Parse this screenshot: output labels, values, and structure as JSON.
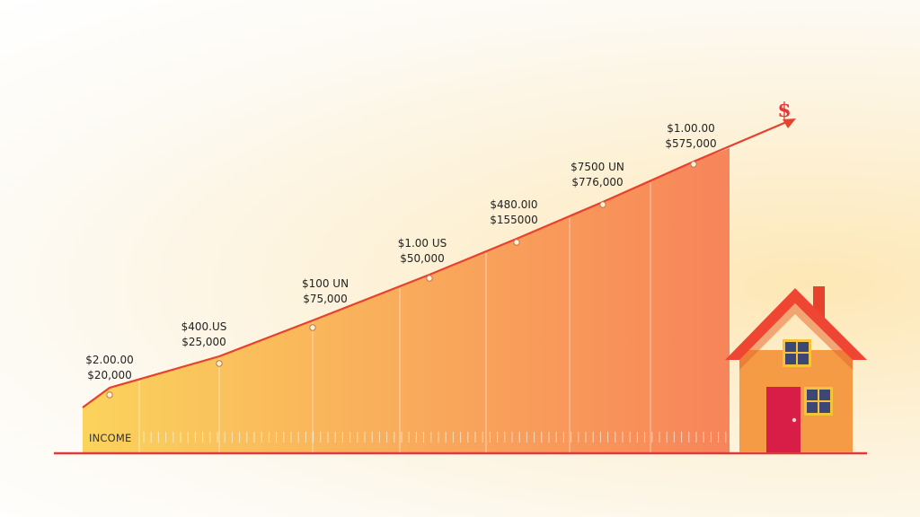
{
  "chart_data": {
    "type": "area",
    "category_label": "INCOME",
    "symbol": "$",
    "colors": {
      "fill_low": "#fbd35c",
      "fill_high": "#f7845a",
      "line": "#e8412e",
      "baseline": "#e23a3a",
      "house_wall": "#f59a45",
      "house_roof": "#ef4634",
      "house_door": "#d81e46",
      "window_glass": "#3d4775",
      "window_frame": "#f5c23a"
    },
    "points": [
      {
        "line1": "$2.00.00",
        "line2": "$20,000",
        "value": 20000
      },
      {
        "line1": "$400.US",
        "line2": "$25,000",
        "value": 25000
      },
      {
        "line1": "$100 UN",
        "line2": "$75,000",
        "value": 75000
      },
      {
        "line1": "$1.00 US",
        "line2": "$50,000",
        "value": 50000
      },
      {
        "line1": "$480.0I0",
        "line2": "$155000",
        "value": 155000
      },
      {
        "line1": "$7500 UN",
        "line2": "$776,000",
        "value": 776000
      },
      {
        "line1": "$1.00.00",
        "line2": "$575,000",
        "value": 575000
      }
    ]
  }
}
